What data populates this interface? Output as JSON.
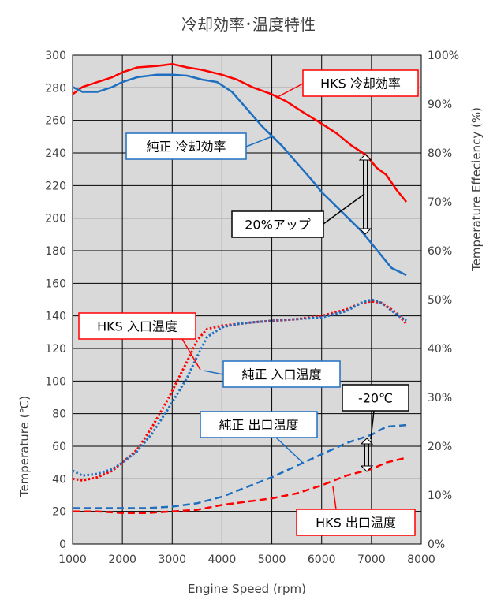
{
  "chart_data": {
    "type": "line",
    "title": "冷却効率･温度特性",
    "xlabel": "Engine Speed (rpm)",
    "ylabel": "Temperature (℃)",
    "y2label": "Temperature Effeciency (%)",
    "xlim": [
      1000,
      8000
    ],
    "ylim": [
      0,
      300
    ],
    "y2lim": [
      0,
      100
    ],
    "x_ticks": [
      "1000",
      "2000",
      "3000",
      "4000",
      "5000",
      "6000",
      "7000",
      "8000"
    ],
    "y_ticks": [
      "0",
      "20",
      "40",
      "60",
      "80",
      "100",
      "120",
      "140",
      "160",
      "180",
      "200",
      "220",
      "240",
      "260",
      "280",
      "300"
    ],
    "y2_ticks": [
      "0%",
      "10%",
      "20%",
      "30%",
      "40%",
      "50%",
      "60%",
      "70%",
      "80%",
      "90%",
      "100%"
    ],
    "grid": true,
    "plot_background": "#d9d9d9",
    "series": [
      {
        "name": "HKS 冷却効率",
        "axis": "right",
        "color": "#ff0000",
        "style": "solid",
        "x": [
          1000,
          1200,
          1500,
          1800,
          2000,
          2300,
          2700,
          3000,
          3300,
          3600,
          4000,
          4300,
          4600,
          5000,
          5300,
          5600,
          6000,
          6300,
          6600,
          6900,
          7100,
          7300,
          7500,
          7700
        ],
        "values": [
          92.0,
          93.5,
          94.5,
          95.5,
          96.5,
          97.5,
          97.8,
          98.2,
          97.5,
          97.0,
          96.0,
          95.0,
          93.5,
          92.0,
          90.5,
          88.5,
          86.0,
          84.0,
          81.5,
          79.5,
          77.0,
          75.5,
          72.5,
          70.0
        ]
      },
      {
        "name": "純正 冷却効率",
        "axis": "right",
        "color": "#1f6fc0",
        "style": "solid",
        "x": [
          1000,
          1200,
          1500,
          1800,
          2000,
          2300,
          2700,
          3000,
          3300,
          3600,
          3900,
          4200,
          4500,
          4800,
          5000,
          5200,
          5500,
          5800,
          6000,
          6300,
          6600,
          6800,
          7000,
          7200,
          7400,
          7700
        ],
        "values": [
          93.5,
          92.5,
          92.5,
          93.5,
          94.5,
          95.5,
          96.0,
          96.0,
          95.8,
          95.0,
          94.5,
          92.5,
          89.0,
          85.5,
          83.5,
          81.5,
          78.0,
          74.5,
          72.0,
          69.0,
          66.0,
          64.0,
          61.5,
          59.0,
          56.5,
          55.0
        ]
      },
      {
        "name": "HKS 入口温度",
        "axis": "left",
        "color": "#ff0000",
        "style": "dotted",
        "x": [
          1000,
          1200,
          1500,
          1800,
          2000,
          2300,
          2600,
          2900,
          3100,
          3300,
          3500,
          3700,
          4000,
          4300,
          4600,
          5000,
          5500,
          6000,
          6500,
          6800,
          7000,
          7200,
          7500,
          7700
        ],
        "values": [
          40,
          39,
          41,
          45,
          50,
          58,
          72,
          88,
          100,
          112,
          125,
          132,
          134,
          135,
          136,
          137,
          138,
          140,
          144,
          148,
          149,
          148,
          142,
          135
        ]
      },
      {
        "name": "純正 入口温度",
        "axis": "left",
        "color": "#1f6fc0",
        "style": "dotted",
        "x": [
          1000,
          1200,
          1500,
          1800,
          2000,
          2300,
          2600,
          2900,
          3100,
          3300,
          3500,
          3700,
          4000,
          4300,
          4600,
          5000,
          5500,
          6000,
          6500,
          6800,
          7000,
          7200,
          7500,
          7700
        ],
        "values": [
          45,
          42,
          43,
          46,
          50,
          57,
          68,
          82,
          92,
          102,
          115,
          127,
          133,
          135,
          136,
          137,
          138,
          139,
          143,
          148,
          150,
          148,
          141,
          137
        ]
      },
      {
        "name": "純正 出口温度",
        "axis": "left",
        "color": "#1f6fc0",
        "style": "dashed",
        "x": [
          1000,
          1500,
          2000,
          2500,
          3000,
          3500,
          4000,
          4500,
          5000,
          5500,
          6000,
          6500,
          7000,
          7300,
          7700
        ],
        "values": [
          22,
          22,
          22,
          22,
          23,
          25,
          29,
          35,
          41,
          48,
          55,
          62,
          67,
          72,
          73
        ]
      },
      {
        "name": "HKS 出口温度",
        "axis": "left",
        "color": "#ff0000",
        "style": "dashed",
        "x": [
          1000,
          1500,
          2000,
          2500,
          3000,
          3500,
          4000,
          4500,
          5000,
          5500,
          6000,
          6500,
          7000,
          7300,
          7700
        ],
        "values": [
          20,
          20,
          19,
          19,
          20,
          21,
          24,
          26,
          28,
          31,
          36,
          42,
          46,
          50,
          53
        ]
      }
    ],
    "annotations": [
      {
        "text": "HKS 冷却効率",
        "color": "#ff0000"
      },
      {
        "text": "純正 冷却効率",
        "color": "#1f6fc0"
      },
      {
        "text": "20%アップ",
        "color": "#000000"
      },
      {
        "text": "HKS 入口温度",
        "color": "#ff0000"
      },
      {
        "text": "純正 入口温度",
        "color": "#1f6fc0"
      },
      {
        "text": "-20℃",
        "color": "#000000"
      },
      {
        "text": "純正 出口温度",
        "color": "#1f6fc0"
      },
      {
        "text": "HKS 出口温度",
        "color": "#ff0000"
      }
    ]
  }
}
